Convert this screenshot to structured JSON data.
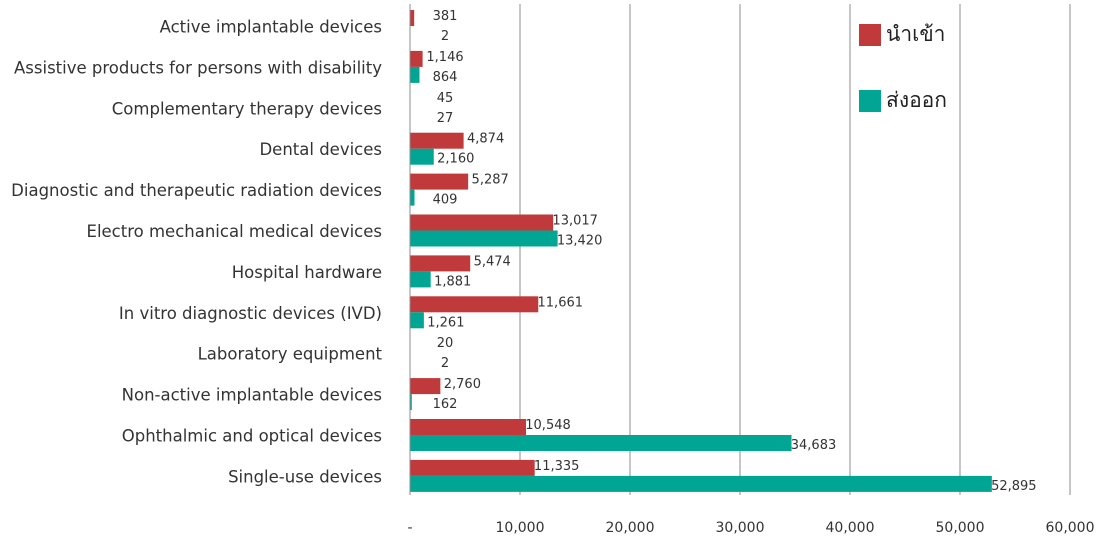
{
  "chart_data": {
    "type": "bar",
    "orientation": "horizontal",
    "categories": [
      "Active implantable devices",
      "Assistive products for persons with disability",
      "Complementary therapy devices",
      "Dental devices",
      "Diagnostic and therapeutic radiation devices",
      "Electro mechanical medical devices",
      "Hospital hardware",
      "In vitro diagnostic devices (IVD)",
      "Laboratory equipment",
      "Non-active implantable devices",
      "Ophthalmic and optical devices",
      "Single-use devices"
    ],
    "series": [
      {
        "name": "นำเข้า",
        "color": "#c0393b",
        "values": [
          381,
          1146,
          45,
          4874,
          5287,
          13017,
          5474,
          11661,
          20,
          2760,
          10548,
          11335
        ],
        "labels": [
          "381",
          "1,146",
          "45",
          "4,874",
          "5,287",
          "13,017",
          "5,474",
          "11,661",
          "20",
          "2,760",
          "10,548",
          "11,335"
        ]
      },
      {
        "name": "ส่งออก",
        "color": "#00a693",
        "values": [
          2,
          864,
          27,
          2160,
          409,
          13420,
          1881,
          1261,
          2,
          162,
          34683,
          52895
        ],
        "labels": [
          "2",
          "864",
          "27",
          "2,160",
          "409",
          "13,420",
          "1,881",
          "1,261",
          "2",
          "162",
          "34,683",
          "52,895"
        ]
      }
    ],
    "xlim": [
      0,
      60000
    ],
    "xticks": [
      0,
      10000,
      20000,
      30000,
      40000,
      50000,
      60000
    ],
    "xtick_labels": [
      "-",
      "10,000",
      "20,000",
      "30,000",
      "40,000",
      "50,000",
      "60,000"
    ],
    "grid": "vertical",
    "legend_position": "top-right",
    "title": "",
    "xlabel": "",
    "ylabel": ""
  }
}
